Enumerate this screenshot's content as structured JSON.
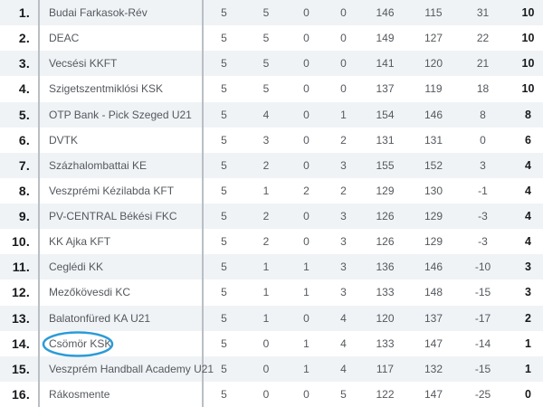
{
  "table": {
    "name": "handball-league-standings",
    "columns": [
      "rank",
      "team",
      "played",
      "wins",
      "draws",
      "losses",
      "goals_for",
      "goals_against",
      "goal_difference",
      "points"
    ],
    "rows": [
      {
        "rank": "1.",
        "team": "Budai Farkasok-Rév",
        "played": "5",
        "wins": "5",
        "draws": "0",
        "losses": "0",
        "goals_for": "146",
        "goals_against": "115",
        "diff": "31",
        "points": "10"
      },
      {
        "rank": "2.",
        "team": "DEAC",
        "played": "5",
        "wins": "5",
        "draws": "0",
        "losses": "0",
        "goals_for": "149",
        "goals_against": "127",
        "diff": "22",
        "points": "10"
      },
      {
        "rank": "3.",
        "team": "Vecsési KKFT",
        "played": "5",
        "wins": "5",
        "draws": "0",
        "losses": "0",
        "goals_for": "141",
        "goals_against": "120",
        "diff": "21",
        "points": "10"
      },
      {
        "rank": "4.",
        "team": "Szigetszentmiklósi KSK",
        "played": "5",
        "wins": "5",
        "draws": "0",
        "losses": "0",
        "goals_for": "137",
        "goals_against": "119",
        "diff": "18",
        "points": "10"
      },
      {
        "rank": "5.",
        "team": "OTP Bank - Pick Szeged U21",
        "played": "5",
        "wins": "4",
        "draws": "0",
        "losses": "1",
        "goals_for": "154",
        "goals_against": "146",
        "diff": "8",
        "points": "8"
      },
      {
        "rank": "6.",
        "team": "DVTK",
        "played": "5",
        "wins": "3",
        "draws": "0",
        "losses": "2",
        "goals_for": "131",
        "goals_against": "131",
        "diff": "0",
        "points": "6"
      },
      {
        "rank": "7.",
        "team": "Százhalombattai KE",
        "played": "5",
        "wins": "2",
        "draws": "0",
        "losses": "3",
        "goals_for": "155",
        "goals_against": "152",
        "diff": "3",
        "points": "4"
      },
      {
        "rank": "8.",
        "team": "Veszprémi Kézilabda KFT",
        "played": "5",
        "wins": "1",
        "draws": "2",
        "losses": "2",
        "goals_for": "129",
        "goals_against": "130",
        "diff": "-1",
        "points": "4"
      },
      {
        "rank": "9.",
        "team": "PV-CENTRAL Békési FKC",
        "played": "5",
        "wins": "2",
        "draws": "0",
        "losses": "3",
        "goals_for": "126",
        "goals_against": "129",
        "diff": "-3",
        "points": "4"
      },
      {
        "rank": "10.",
        "team": "KK Ajka KFT",
        "played": "5",
        "wins": "2",
        "draws": "0",
        "losses": "3",
        "goals_for": "126",
        "goals_against": "129",
        "diff": "-3",
        "points": "4"
      },
      {
        "rank": "11.",
        "team": "Ceglédi KK",
        "played": "5",
        "wins": "1",
        "draws": "1",
        "losses": "3",
        "goals_for": "136",
        "goals_against": "146",
        "diff": "-10",
        "points": "3"
      },
      {
        "rank": "12.",
        "team": "Mezőkövesdi KC",
        "played": "5",
        "wins": "1",
        "draws": "1",
        "losses": "3",
        "goals_for": "133",
        "goals_against": "148",
        "diff": "-15",
        "points": "3"
      },
      {
        "rank": "13.",
        "team": "Balatonfüred KA U21",
        "played": "5",
        "wins": "1",
        "draws": "0",
        "losses": "4",
        "goals_for": "120",
        "goals_against": "137",
        "diff": "-17",
        "points": "2"
      },
      {
        "rank": "14.",
        "team": "Csömör KSK",
        "played": "5",
        "wins": "0",
        "draws": "1",
        "losses": "4",
        "goals_for": "133",
        "goals_against": "147",
        "diff": "-14",
        "points": "1"
      },
      {
        "rank": "15.",
        "team": "Veszprém Handball Academy U21",
        "played": "5",
        "wins": "0",
        "draws": "1",
        "losses": "4",
        "goals_for": "117",
        "goals_against": "132",
        "diff": "-15",
        "points": "1"
      },
      {
        "rank": "16.",
        "team": "Rákosmente",
        "played": "5",
        "wins": "0",
        "draws": "0",
        "losses": "5",
        "goals_for": "122",
        "goals_against": "147",
        "diff": "-25",
        "points": "0"
      }
    ]
  },
  "highlight": {
    "team": "Csömör KSK",
    "row_index": 13,
    "shape": "ellipse",
    "color": "#2b9bd7"
  },
  "colors": {
    "stripe_row_bg": "#f0f3f6",
    "plain_row_bg": "#ffffff",
    "divider": "#b9bfc5",
    "rank_text": "#17191c",
    "body_text": "#54585d",
    "points_text": "#17191c"
  }
}
